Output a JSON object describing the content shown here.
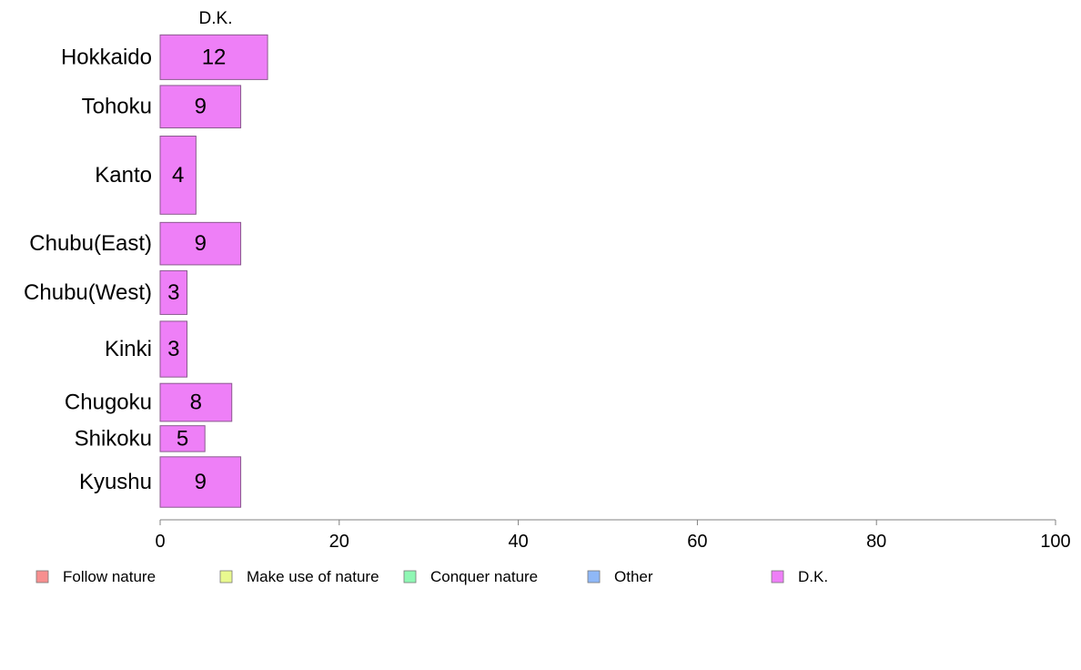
{
  "chart_data": {
    "type": "bar",
    "orientation": "horizontal",
    "stacked": true,
    "categories": [
      "Hokkaido",
      "Tohoku",
      "Kanto",
      "Chubu(East)",
      "Chubu(West)",
      "Kinki",
      "Chugoku",
      "Shikoku",
      "Kyushu"
    ],
    "series": [
      {
        "name": "Follow nature",
        "color": "#f78f8f",
        "values": null
      },
      {
        "name": "Make use of nature",
        "color": "#e9f98f",
        "values": null
      },
      {
        "name": "Conquer nature",
        "color": "#8ff7b4",
        "values": null
      },
      {
        "name": "Other",
        "color": "#8fb8f7",
        "values": null
      },
      {
        "name": "D.K.",
        "color": "#ee7ff7",
        "values": [
          12,
          9,
          4,
          9,
          3,
          3,
          8,
          5,
          9
        ]
      }
    ],
    "visible_series_label": "D.K.",
    "xlim": [
      0,
      100
    ],
    "xticks": [
      0,
      20,
      40,
      60,
      80,
      100
    ],
    "row_weights": [
      1,
      0.95,
      1.75,
      0.95,
      0.98,
      1.25,
      0.85,
      0.58,
      1.13
    ],
    "grid": false,
    "legend_position": "bottom"
  }
}
